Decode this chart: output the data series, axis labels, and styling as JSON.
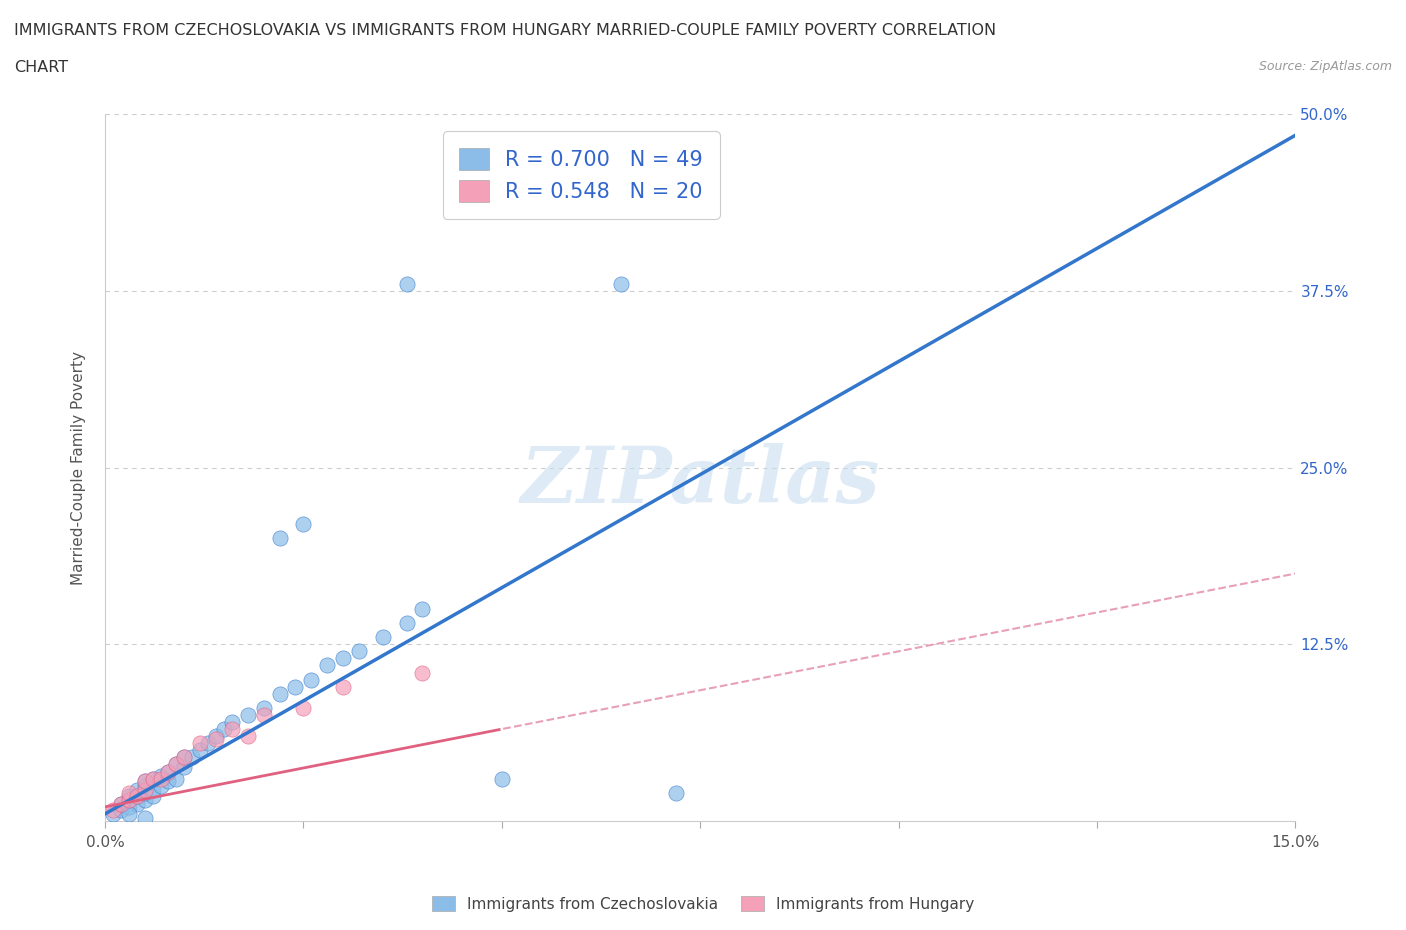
{
  "title_line1": "IMMIGRANTS FROM CZECHOSLOVAKIA VS IMMIGRANTS FROM HUNGARY MARRIED-COUPLE FAMILY POVERTY CORRELATION",
  "title_line2": "CHART",
  "source": "Source: ZipAtlas.com",
  "ylabel": "Married-Couple Family Poverty",
  "xlim": [
    0.0,
    0.15
  ],
  "ylim": [
    0.0,
    0.5
  ],
  "xticks": [
    0.0,
    0.025,
    0.05,
    0.075,
    0.1,
    0.125,
    0.15
  ],
  "xticklabels": [
    "0.0%",
    "",
    "",
    "",
    "",
    "",
    "15.0%"
  ],
  "yticks": [
    0.0,
    0.125,
    0.25,
    0.375,
    0.5
  ],
  "yticklabels_right": [
    "",
    "12.5%",
    "25.0%",
    "37.5%",
    "50.0%"
  ],
  "R_czech": 0.7,
  "N_czech": 49,
  "R_hungary": 0.548,
  "N_hungary": 20,
  "color_czech": "#8BBDE8",
  "color_hungary": "#F4A0B8",
  "line_color_czech": "#3377CC",
  "line_color_hungary": "#E06080",
  "line_color_hungary_dashed": "#E8A0B8",
  "watermark": "ZIPatlas",
  "legend_text_color": "#3366CC",
  "czech_line_slope": 3.2,
  "czech_line_intercept": 0.005,
  "hungary_line_slope": 1.1,
  "hungary_line_intercept": 0.01,
  "scatter_czech_x": [
    0.001,
    0.002,
    0.002,
    0.003,
    0.003,
    0.003,
    0.004,
    0.004,
    0.004,
    0.005,
    0.005,
    0.005,
    0.005,
    0.006,
    0.006,
    0.006,
    0.007,
    0.007,
    0.008,
    0.008,
    0.009,
    0.009,
    0.01,
    0.01,
    0.011,
    0.012,
    0.013,
    0.014,
    0.015,
    0.016,
    0.018,
    0.02,
    0.022,
    0.024,
    0.026,
    0.028,
    0.03,
    0.032,
    0.035,
    0.038,
    0.04,
    0.022,
    0.025,
    0.038,
    0.065,
    0.072,
    0.05,
    0.005,
    0.003
  ],
  "scatter_czech_y": [
    0.005,
    0.008,
    0.012,
    0.01,
    0.015,
    0.018,
    0.012,
    0.018,
    0.022,
    0.015,
    0.02,
    0.025,
    0.028,
    0.018,
    0.022,
    0.03,
    0.025,
    0.032,
    0.028,
    0.035,
    0.03,
    0.04,
    0.038,
    0.045,
    0.045,
    0.05,
    0.055,
    0.06,
    0.065,
    0.07,
    0.075,
    0.08,
    0.09,
    0.095,
    0.1,
    0.11,
    0.115,
    0.12,
    0.13,
    0.14,
    0.15,
    0.2,
    0.21,
    0.38,
    0.38,
    0.02,
    0.03,
    0.002,
    0.005
  ],
  "scatter_hungary_x": [
    0.001,
    0.002,
    0.003,
    0.003,
    0.004,
    0.005,
    0.005,
    0.006,
    0.007,
    0.008,
    0.009,
    0.01,
    0.012,
    0.014,
    0.016,
    0.018,
    0.02,
    0.025,
    0.03,
    0.04
  ],
  "scatter_hungary_y": [
    0.008,
    0.012,
    0.015,
    0.02,
    0.018,
    0.022,
    0.028,
    0.03,
    0.03,
    0.035,
    0.04,
    0.045,
    0.055,
    0.058,
    0.065,
    0.06,
    0.075,
    0.08,
    0.095,
    0.105
  ]
}
